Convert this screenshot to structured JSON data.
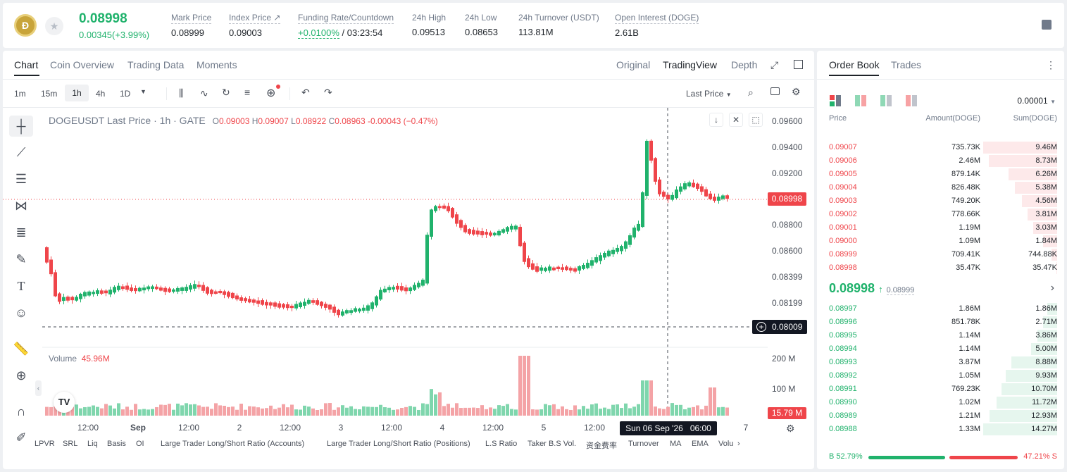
{
  "ticker": {
    "price": "0.08998",
    "change": "0.00345(+3.99%)",
    "stats": [
      {
        "label": "Mark Price",
        "value": "0.08999"
      },
      {
        "label": "Index Price ↗",
        "value": "0.09003"
      },
      {
        "label": "Funding Rate/Countdown",
        "value_rate": "+0.0100%",
        "value_cd": " / 03:23:54"
      },
      {
        "label": "24h High",
        "value": "0.09513"
      },
      {
        "label": "24h Low",
        "value": "0.08653"
      },
      {
        "label": "24h Turnover (USDT)",
        "value": "113.81M"
      },
      {
        "label": "Open Interest (DOGE)",
        "value": "2.61B"
      }
    ]
  },
  "tabs": [
    "Chart",
    "Coin Overview",
    "Trading Data",
    "Moments"
  ],
  "view_tabs": [
    "Original",
    "TradingView",
    "Depth"
  ],
  "intervals": [
    "1m",
    "15m",
    "1h",
    "4h",
    "1D"
  ],
  "last_price_sel": "Last Price",
  "legend": {
    "symbol": "DOGEUSDT Last Price · 1h · GATE",
    "o": "0.09003",
    "h": "0.09007",
    "l": "0.08922",
    "c": "0.08963",
    "chg": "-0.00043 (−0.47%)",
    "o_lbl": "O",
    "h_lbl": "H",
    "l_lbl": "L",
    "c_lbl": "C"
  },
  "price_axis": [
    "0.09600",
    "0.09400",
    "0.09200",
    "0.08800",
    "0.08600",
    "0.08399",
    "0.08199"
  ],
  "price_tags": {
    "last": "0.08998",
    "cross": "0.08009"
  },
  "volume": {
    "label": "Volume",
    "value": "45.96M",
    "axis": [
      "200 M",
      "100 M"
    ],
    "tag": "15.79 M"
  },
  "time_axis": [
    "12:00",
    "Sep",
    "12:00",
    "2",
    "12:00",
    "3",
    "12:00",
    "4",
    "12:00",
    "5",
    "12:00",
    "7"
  ],
  "crosshair_time": "Sun 06 Sep '26   06:00",
  "indicators": [
    "LPVR",
    "SRL",
    "Liq",
    "Basis",
    "OI",
    "Large Trader Long/Short Ratio (Accounts)",
    "Large Trader Long/Short Ratio (Positions)",
    "L.S Ratio",
    "Taker B.S Vol.",
    "资金费率",
    "Turnover",
    "MA",
    "EMA",
    "Volu"
  ],
  "book": {
    "tabs": [
      "Order Book",
      "Trades"
    ],
    "precision": "0.00001",
    "headers": [
      "Price",
      "Amount(DOGE)",
      "Sum(DOGE)"
    ],
    "asks": [
      [
        "0.09007",
        "735.73K",
        "9.46M",
        1.0
      ],
      [
        "0.09006",
        "2.46M",
        "8.73M",
        0.92
      ],
      [
        "0.09005",
        "879.14K",
        "6.26M",
        0.66
      ],
      [
        "0.09004",
        "826.48K",
        "5.38M",
        0.57
      ],
      [
        "0.09003",
        "749.20K",
        "4.56M",
        0.48
      ],
      [
        "0.09002",
        "778.66K",
        "3.81M",
        0.4
      ],
      [
        "0.09001",
        "1.19M",
        "3.03M",
        0.32
      ],
      [
        "0.09000",
        "1.09M",
        "1.84M",
        0.19
      ],
      [
        "0.08999",
        "709.41K",
        "744.88K",
        0.08
      ],
      [
        "0.08998",
        "35.47K",
        "35.47K",
        0.01
      ]
    ],
    "mid": {
      "price": "0.08998",
      "mark": "0.08999"
    },
    "bids": [
      [
        "0.08997",
        "1.86M",
        "1.86M",
        0.13
      ],
      [
        "0.08996",
        "851.78K",
        "2.71M",
        0.19
      ],
      [
        "0.08995",
        "1.14M",
        "3.86M",
        0.27
      ],
      [
        "0.08994",
        "1.14M",
        "5.00M",
        0.35
      ],
      [
        "0.08993",
        "3.87M",
        "8.88M",
        0.62
      ],
      [
        "0.08992",
        "1.05M",
        "9.93M",
        0.7
      ],
      [
        "0.08991",
        "769.23K",
        "10.70M",
        0.75
      ],
      [
        "0.08990",
        "1.02M",
        "11.72M",
        0.82
      ],
      [
        "0.08989",
        "1.21M",
        "12.93M",
        0.91
      ],
      [
        "0.08988",
        "1.33M",
        "14.27M",
        1.0
      ]
    ],
    "ratio": {
      "b": "B 52.79%",
      "s": "47.21% S",
      "b_frac": 0.5279
    }
  }
}
